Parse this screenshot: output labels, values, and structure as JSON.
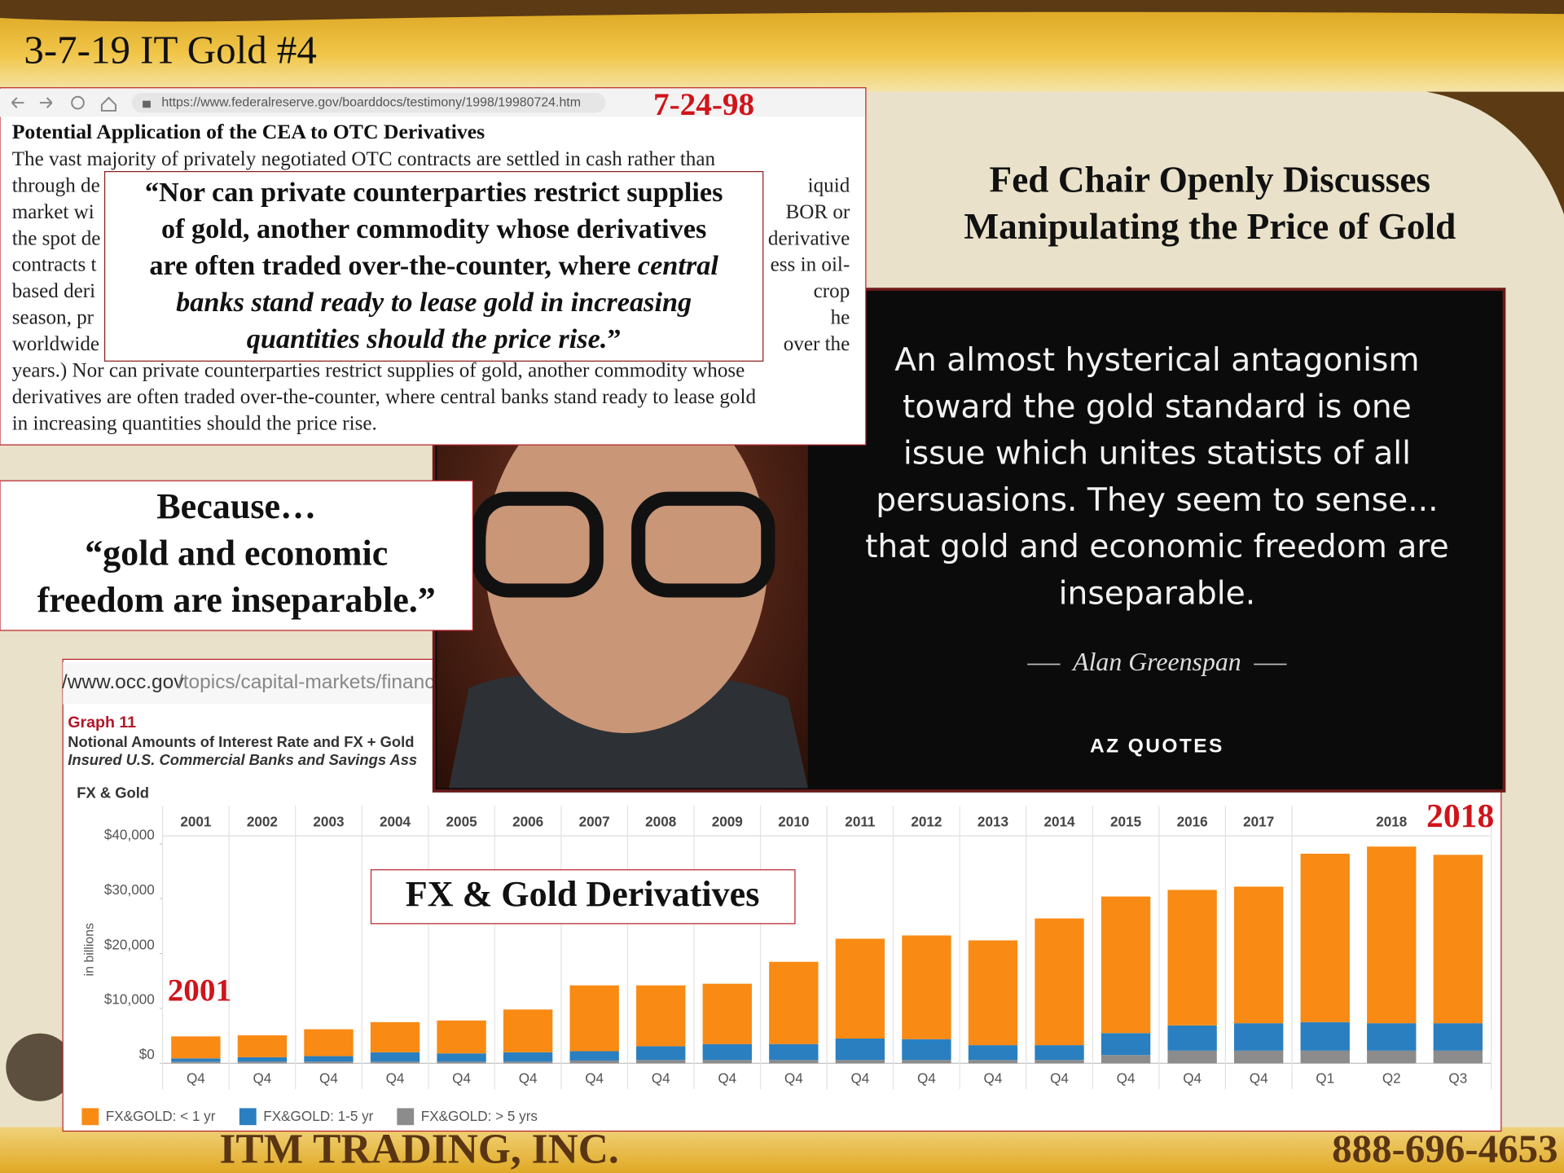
{
  "header": {
    "title": "3-7-19 IT Gold #4"
  },
  "browser": {
    "url": "https://www.federalreserve.gov/boarddocs/testimony/1998/19980724.htm",
    "date_label": "7-24-98",
    "heading": "Potential Application of the CEA to OTC Derivatives",
    "paragraph": [
      {
        "left": "The vast majority of privately negotiated OTC contracts are settled in cash rather than"
      },
      {
        "left": "through de",
        "right": "iquid"
      },
      {
        "left": "market wi",
        "right": "BOR or"
      },
      {
        "left": "the spot de",
        "right": "derivative"
      },
      {
        "left": "contracts t",
        "right": "ess in oil-"
      },
      {
        "left": "based deri",
        "right": "crop"
      },
      {
        "left": "season, pr",
        "right": "he"
      },
      {
        "left": "worldwide",
        "right": "over the"
      },
      {
        "left": "years.) Nor can private counterparties restrict supplies of gold, another commodity whose"
      },
      {
        "left": "derivatives are often traded over-the-counter, where central banks stand ready to lease gold"
      },
      {
        "left": "in increasing quantities should the price rise."
      }
    ],
    "quote_lines": [
      [
        {
          "text": "“Nor can private counterparties restrict supplies",
          "italic": false
        }
      ],
      [
        {
          "text": "of gold, another commodity whose derivatives",
          "italic": false
        }
      ],
      [
        {
          "text": "are often traded over-the-counter, where ",
          "italic": false
        },
        {
          "text": "central",
          "italic": true
        }
      ],
      [
        {
          "text": "banks stand ready to lease gold in increasing",
          "italic": true
        }
      ],
      [
        {
          "text": "quantities should the price rise.",
          "italic": true
        },
        {
          "text": "”",
          "italic": false
        }
      ]
    ]
  },
  "because_box": {
    "lines": [
      "Because…",
      "“gold and economic",
      "freedom are inseparable.”"
    ]
  },
  "slide_title": {
    "lines": [
      "Fed Chair Openly Discusses",
      "Manipulating the Price of Gold"
    ]
  },
  "quote_card": {
    "lines": [
      "An almost hysterical antagonism",
      "toward the gold standard is one",
      "issue which unites statists of all",
      "persuasions. They seem to sense...",
      "that gold and economic freedom are",
      "inseparable."
    ],
    "author": "Alan Greenspan",
    "brand": "AZ QUOTES"
  },
  "occ_panel": {
    "url_host": "/www.occ.gov",
    "url_path": "/topics/capital-markets/financ",
    "graph_label": "Graph 11",
    "graph_title": "Notional Amounts of Interest Rate and FX + Gold",
    "graph_subtitle": "Insured U.S. Commercial Banks and Savings Ass",
    "section_label": "FX & Gold",
    "overlay_label": "FX & Gold Derivatives"
  },
  "chart_data": {
    "type": "stacked_bar",
    "y_label": "in billions",
    "categories": [
      "Q4",
      "Q4",
      "Q4",
      "Q4",
      "Q4",
      "Q4",
      "Q4",
      "Q4",
      "Q4",
      "Q4",
      "Q4",
      "Q4",
      "Q4",
      "Q4",
      "Q4",
      "Q4",
      "Q4",
      "Q1",
      "Q2",
      "Q3"
    ],
    "years": [
      "2001",
      "2002",
      "2003",
      "2004",
      "2005",
      "2006",
      "2007",
      "2008",
      "2009",
      "2010",
      "2011",
      "2012",
      "2013",
      "2014",
      "2015",
      "2016",
      "2017",
      null,
      "2018",
      null
    ],
    "series": [
      {
        "name": "FX&GOLD: < 1 yr",
        "color": "#f98a14",
        "values": [
          4000,
          4000,
          4900,
          5500,
          6000,
          7800,
          12000,
          11100,
          11000,
          15000,
          18200,
          18900,
          19100,
          23100,
          24900,
          24700,
          24900,
          30700,
          32200,
          30700
        ]
      },
      {
        "name": "FX&GOLD: 1-5 yr",
        "color": "#2a7fc0",
        "values": [
          600,
          800,
          1000,
          1700,
          1500,
          1700,
          1700,
          2500,
          2900,
          2900,
          3900,
          3800,
          2700,
          2700,
          4000,
          4600,
          5000,
          5200,
          5000,
          5000
        ]
      },
      {
        "name": "FX&GOLD: > 5 yrs",
        "color": "#8c8c8c",
        "values": [
          300,
          300,
          300,
          300,
          300,
          300,
          500,
          600,
          600,
          600,
          600,
          600,
          600,
          600,
          1500,
          2300,
          2300,
          2300,
          2300,
          2300
        ]
      }
    ],
    "ylim": [
      0,
      40000
    ],
    "yticks": [
      {
        "value": 0,
        "label": "$0"
      },
      {
        "value": 10000,
        "label": "$10,000"
      },
      {
        "value": 20000,
        "label": "$20,000"
      },
      {
        "value": 30000,
        "label": "$30,000"
      },
      {
        "value": 40000,
        "label": "$40,000"
      }
    ],
    "annotations": {
      "start": "2001",
      "end": "2018"
    }
  },
  "footer": {
    "company": "ITM TRADING, INC.",
    "phone": "888-696-4653"
  }
}
